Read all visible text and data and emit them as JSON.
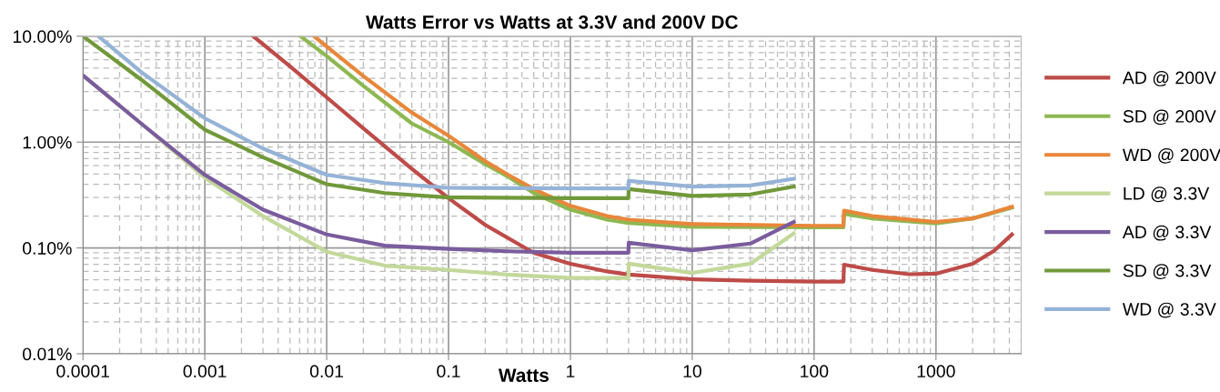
{
  "chart_data": {
    "type": "line",
    "title": "Watts Error vs Watts at 3.3V and 200V DC",
    "xlabel": "Watts",
    "log": "xy",
    "xlim": [
      0.0001,
      5000
    ],
    "ylim": [
      0.01,
      10
    ],
    "xticks": [
      0.0001,
      0.001,
      0.01,
      0.1,
      1,
      10,
      100,
      1000
    ],
    "yticks": [
      {
        "value": 0.01,
        "label": "0.01%"
      },
      {
        "value": 0.1,
        "label": "0.10%"
      },
      {
        "value": 1,
        "label": "1.00%"
      },
      {
        "value": 10,
        "label": "10.00%"
      }
    ],
    "grid": true,
    "legend": "right",
    "marker": "none",
    "line_style": "solid",
    "series": [
      {
        "name": "AD @ 200V",
        "color": "#be4b48",
        "x": [
          0.0025,
          0.005,
          0.01,
          0.02,
          0.05,
          0.1,
          0.2,
          0.5,
          1,
          2,
          3,
          10,
          30,
          100,
          174,
          176,
          300,
          600,
          1000,
          2000,
          3000,
          4200
        ],
        "values": [
          10,
          5.2,
          2.65,
          1.35,
          0.56,
          0.295,
          0.165,
          0.09,
          0.071,
          0.06,
          0.056,
          0.0506,
          0.049,
          0.048,
          0.048,
          0.0695,
          0.062,
          0.0565,
          0.057,
          0.071,
          0.094,
          0.134
        ]
      },
      {
        "name": "SD @ 200V",
        "color": "#8db852",
        "x": [
          0.0061,
          0.01,
          0.02,
          0.05,
          0.1,
          0.2,
          0.3,
          0.5,
          1,
          2,
          3,
          10,
          100,
          174,
          176,
          300,
          1000,
          2000,
          4200
        ],
        "values": [
          10,
          6.5,
          3.4,
          1.5,
          1.0,
          0.62,
          0.48,
          0.33,
          0.23,
          0.185,
          0.172,
          0.158,
          0.157,
          0.157,
          0.21,
          0.19,
          0.17,
          0.19,
          0.24
        ]
      },
      {
        "name": "WD @ 200V",
        "color": "#e8873a",
        "x": [
          0.0079,
          0.01,
          0.02,
          0.05,
          0.1,
          0.2,
          0.3,
          0.5,
          1,
          2,
          3,
          10,
          100,
          174,
          176,
          300,
          1000,
          2000,
          4200
        ],
        "values": [
          10,
          8.0,
          4.2,
          1.9,
          1.15,
          0.66,
          0.5,
          0.36,
          0.25,
          0.2,
          0.185,
          0.168,
          0.162,
          0.162,
          0.225,
          0.2,
          0.176,
          0.19,
          0.245
        ]
      },
      {
        "name": "LD @ 3.3V",
        "color": "#c3d99b",
        "x": [
          0.0001,
          0.0003,
          0.001,
          0.003,
          0.01,
          0.03,
          0.1,
          0.3,
          1,
          2.99,
          3.01,
          10,
          30,
          68
        ],
        "values": [
          4.27,
          1.5,
          0.46,
          0.2,
          0.092,
          0.068,
          0.062,
          0.056,
          0.052,
          0.052,
          0.071,
          0.058,
          0.071,
          0.137
        ]
      },
      {
        "name": "AD @ 3.3V",
        "color": "#7a5c9e",
        "x": [
          0.0001,
          0.0003,
          0.001,
          0.003,
          0.01,
          0.03,
          0.1,
          0.3,
          1,
          2.99,
          3.01,
          10,
          30,
          68
        ],
        "values": [
          4.27,
          1.5,
          0.49,
          0.23,
          0.134,
          0.105,
          0.098,
          0.093,
          0.09,
          0.09,
          0.112,
          0.095,
          0.11,
          0.176
        ]
      },
      {
        "name": "SD @ 3.3V",
        "color": "#71993a",
        "x": [
          0.0001,
          0.0003,
          0.001,
          0.003,
          0.01,
          0.03,
          0.1,
          1,
          2.99,
          3.01,
          10,
          30,
          68
        ],
        "values": [
          10,
          3.9,
          1.31,
          0.72,
          0.4,
          0.33,
          0.3,
          0.295,
          0.295,
          0.36,
          0.31,
          0.32,
          0.38
        ]
      },
      {
        "name": "WD @ 3.3V",
        "color": "#95b3d7",
        "x": [
          0.000134,
          0.0003,
          0.001,
          0.003,
          0.01,
          0.03,
          0.1,
          1,
          2.99,
          3.01,
          10,
          30,
          68
        ],
        "values": [
          10,
          4.6,
          1.68,
          0.87,
          0.49,
          0.41,
          0.37,
          0.365,
          0.365,
          0.43,
          0.38,
          0.39,
          0.45
        ]
      }
    ]
  }
}
